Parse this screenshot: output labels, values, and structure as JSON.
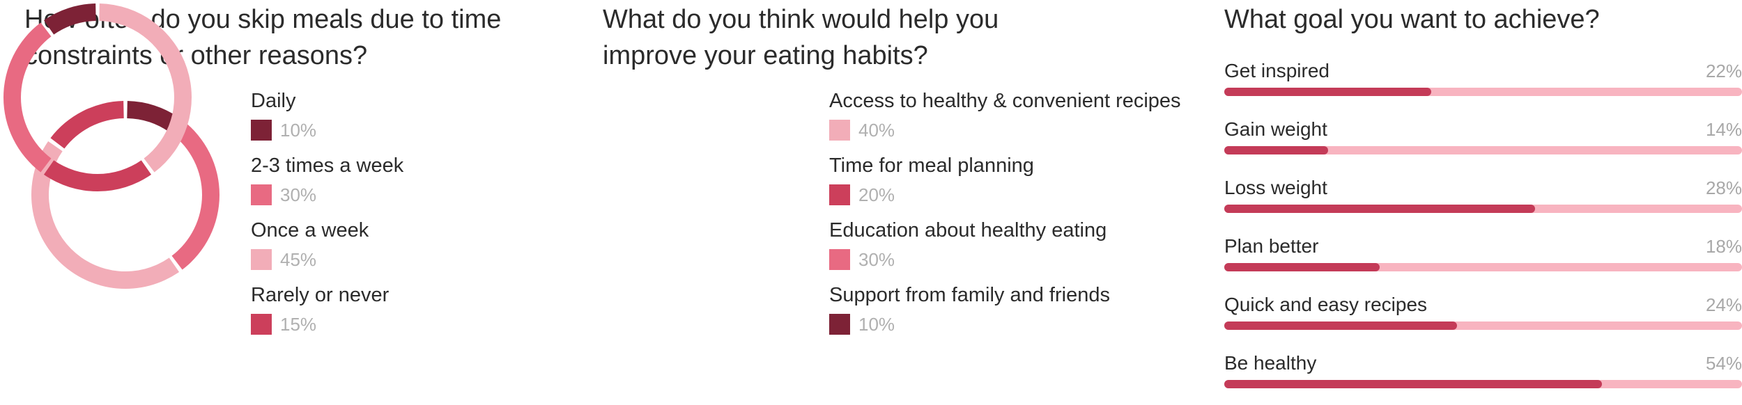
{
  "colors": {
    "dark": "#7d2236",
    "pink": "#e86a82",
    "light": "#f2adb8",
    "red": "#cc3f5b",
    "bar_fill": "#c43b58",
    "bar_track": "#f8b4c0"
  },
  "chart_data": [
    {
      "type": "pie",
      "title": "How often do you skip meals due to time constraints or other reasons?",
      "categories": [
        "Daily",
        "2-3 times a week",
        "Once a week",
        "Rarely or never"
      ],
      "values": [
        10,
        30,
        45,
        15
      ],
      "labels": [
        "10%",
        "30%",
        "45%",
        "15%"
      ],
      "colors": [
        "#7d2236",
        "#e86a82",
        "#f2adb8",
        "#cc3f5b"
      ],
      "donut": true
    },
    {
      "type": "pie",
      "title": "What do you think would help you improve your eating habits?",
      "categories": [
        "Access to healthy & convenient recipes",
        "Time for meal planning",
        "Education about healthy eating",
        "Support from family and friends"
      ],
      "values": [
        40,
        20,
        30,
        10
      ],
      "labels": [
        "40%",
        "20%",
        "30%",
        "10%"
      ],
      "colors": [
        "#f2adb8",
        "#cc3f5b",
        "#e86a82",
        "#7d2236"
      ],
      "donut": true
    },
    {
      "type": "bar",
      "orientation": "horizontal",
      "title": "What goal you want to achieve?",
      "categories": [
        "Get inspired",
        "Gain weight",
        "Loss weight",
        "Plan better",
        "Quick and easy recipes",
        "Be healthy"
      ],
      "values": [
        22,
        14,
        28,
        18,
        24,
        54
      ],
      "labels": [
        "22%",
        "14%",
        "28%",
        "18%",
        "24%",
        "54%"
      ],
      "fill_fraction": [
        0.4,
        0.2,
        0.6,
        0.3,
        0.45,
        0.73
      ]
    }
  ]
}
